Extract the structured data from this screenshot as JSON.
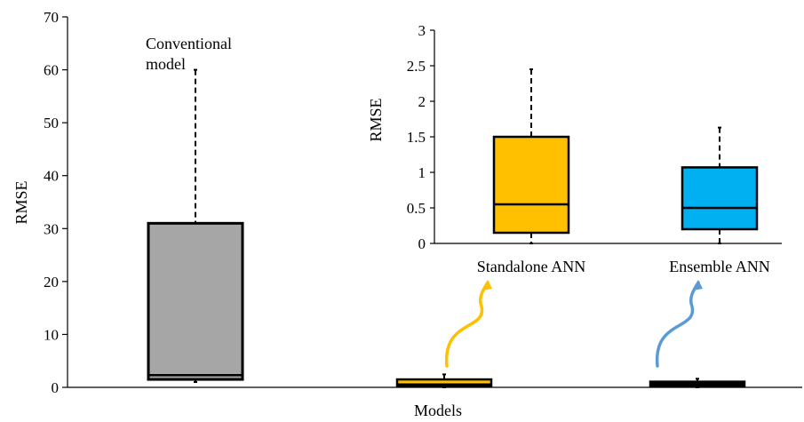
{
  "chart_data": [
    {
      "type": "box",
      "xlabel": "Models",
      "ylabel": "RMSE",
      "ylim": [
        0,
        70
      ],
      "yticks": [
        0,
        10,
        20,
        30,
        40,
        50,
        60,
        70
      ],
      "categories": [
        "Conventional model",
        "Standalone ANN",
        "Ensemble ANN"
      ],
      "boxes": [
        {
          "category": "Conventional model",
          "color": "#A6A6A6",
          "min": 1,
          "q1": 1.5,
          "median": 2.3,
          "q3": 31,
          "max": 60
        },
        {
          "category": "Standalone ANN",
          "color": "#FFC000",
          "min": 0,
          "q1": 0.15,
          "median": 0.55,
          "q3": 1.5,
          "max": 2.45
        },
        {
          "category": "Ensemble ANN",
          "color": "#00B0F0",
          "min": 0,
          "q1": 0.2,
          "median": 0.5,
          "q3": 1.07,
          "max": 1.63
        }
      ],
      "annotations": [
        "Conventional model"
      ]
    },
    {
      "type": "box",
      "inset": true,
      "ylabel": "RMSE",
      "ylim": [
        0,
        3
      ],
      "yticks": [
        "0",
        "0.5",
        "1",
        "1.5",
        "2",
        "2.5",
        "3"
      ],
      "categories": [
        "Standalone ANN",
        "Ensemble ANN"
      ],
      "boxes": [
        {
          "category": "Standalone ANN",
          "color": "#FFC000",
          "min": 0,
          "q1": 0.15,
          "median": 0.55,
          "q3": 1.5,
          "max": 2.45
        },
        {
          "category": "Ensemble ANN",
          "color": "#00B0F0",
          "min": 0,
          "q1": 0.2,
          "median": 0.5,
          "q3": 1.07,
          "max": 1.63
        }
      ]
    }
  ],
  "annotation": {
    "line1": "Conventional",
    "line2": "model"
  },
  "arrow_colors": [
    "#FFC000",
    "#5B9BD5"
  ]
}
